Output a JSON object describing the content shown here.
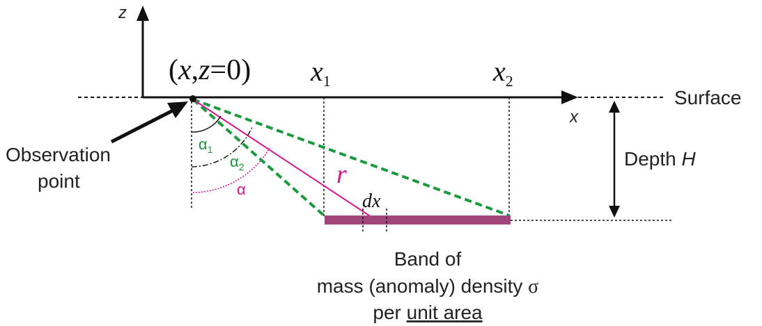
{
  "labels": {
    "axis_z": "z",
    "axis_x": "x",
    "origin_prefix": "(",
    "origin_x": "x",
    "origin_sep": ",",
    "origin_z": "z",
    "origin_suffix": "=0)",
    "x1_base": "x",
    "x1_sub": "1",
    "x2_base": "x",
    "x2_sub": "2",
    "surface": "Surface",
    "observation_line1": "Observation",
    "observation_line2": "point",
    "depth_prefix": "Depth ",
    "depth_var": "H",
    "r": "r",
    "dx": "dx",
    "alpha1_base": "α",
    "alpha1_sub": "1",
    "alpha2_base": "α",
    "alpha2_sub": "2",
    "alpha": "α",
    "band_line1": "Band of",
    "band_line2_text": "mass (anomaly) density ",
    "band_line2_sigma": "σ",
    "band_line3_prefix": "per ",
    "band_line3_underlined": "unit area"
  },
  "colors": {
    "axis": "#111111",
    "green_dashed": "#1a9a3c",
    "magenta": "#d6178c",
    "band": "#a3457d",
    "text": "#222222"
  }
}
